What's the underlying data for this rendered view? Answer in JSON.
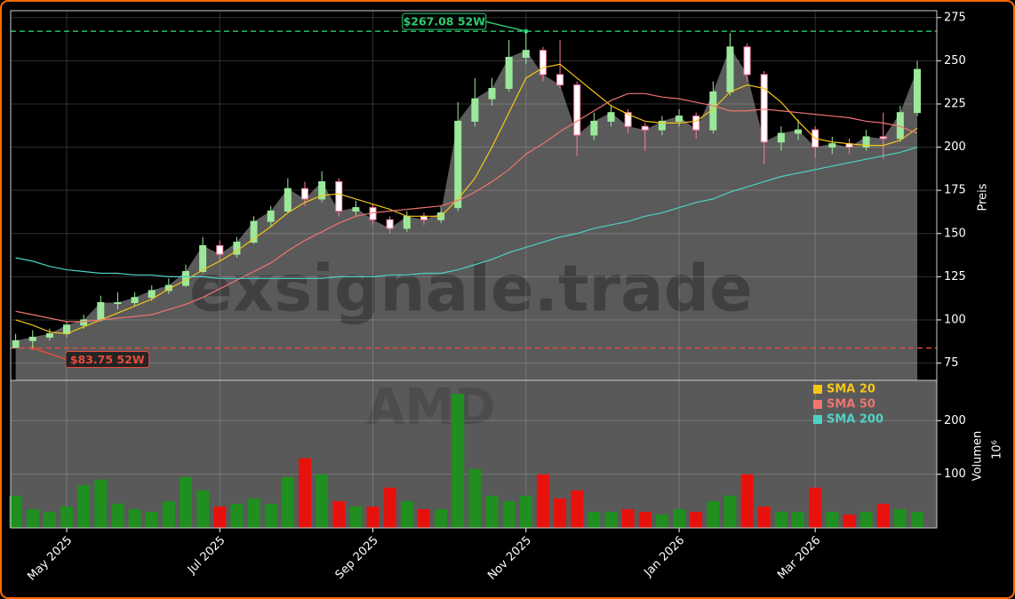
{
  "chart_data": {
    "type": "candlestick",
    "categories": [
      null,
      null,
      null,
      "May 2025",
      null,
      null,
      null,
      null,
      null,
      null,
      null,
      null,
      "Jul 2025",
      null,
      null,
      null,
      null,
      null,
      null,
      null,
      null,
      "Sep 2025",
      null,
      null,
      null,
      null,
      null,
      null,
      null,
      null,
      "Nov 2025",
      null,
      null,
      null,
      null,
      null,
      null,
      null,
      null,
      "Jan 2026",
      null,
      null,
      null,
      null,
      null,
      null,
      null,
      "Mar 2026",
      null,
      null,
      null,
      null,
      null,
      null
    ],
    "open": [
      84,
      88,
      90,
      92,
      97,
      100,
      110,
      110,
      113,
      117,
      120,
      128,
      143,
      138,
      145,
      157,
      163,
      176,
      170,
      180,
      163,
      165,
      158,
      153,
      160,
      158,
      165,
      215,
      228,
      234,
      252,
      256,
      242,
      236,
      207,
      215,
      220,
      212,
      210,
      215,
      218,
      210,
      232,
      258,
      242,
      203,
      208,
      210,
      200,
      202,
      200,
      206,
      205,
      220
    ],
    "high": [
      92,
      94,
      95,
      99,
      103,
      114,
      116,
      116,
      120,
      124,
      132,
      148,
      146,
      148,
      160,
      166,
      182,
      180,
      186,
      182,
      169,
      167,
      160,
      163,
      162,
      166,
      226,
      240,
      240,
      262,
      267.08,
      258,
      262,
      238,
      220,
      224,
      222,
      214,
      218,
      222,
      220,
      238,
      266,
      260,
      244,
      212,
      216,
      212,
      206,
      205,
      210,
      220,
      224,
      250
    ],
    "low": [
      85,
      83.75,
      88,
      90,
      95,
      99,
      106,
      108,
      111,
      115,
      119,
      127,
      134,
      136,
      144,
      154,
      162,
      166,
      168,
      160,
      160,
      155,
      150,
      151,
      155,
      156,
      163,
      212,
      224,
      232,
      248,
      238,
      234,
      195,
      204,
      212,
      208,
      198,
      207,
      212,
      205,
      208,
      230,
      238,
      190,
      198,
      204,
      194,
      196,
      196,
      198,
      193,
      203,
      218
    ],
    "close": [
      88,
      90,
      92,
      97,
      100,
      110,
      110,
      113,
      117,
      120,
      128,
      143,
      138,
      145,
      157,
      163,
      176,
      170,
      180,
      163,
      165,
      158,
      153,
      160,
      158,
      162,
      215,
      228,
      234,
      252,
      256,
      242,
      236,
      207,
      215,
      220,
      212,
      210,
      215,
      218,
      210,
      232,
      258,
      242,
      203,
      208,
      210,
      200,
      202,
      200,
      206,
      205,
      220,
      245
    ],
    "colors": {
      "up": "#9be89b",
      "down": "#ff7a9a",
      "area": "#5a5a5a"
    },
    "series": [
      {
        "name": "SMA 20",
        "color": "#f5c518",
        "values": [
          100,
          97,
          93,
          92,
          96,
          100,
          104,
          108,
          112,
          118,
          123,
          129,
          134,
          140,
          147,
          154,
          162,
          168,
          172,
          173,
          170,
          167,
          164,
          160,
          160,
          160,
          170,
          182,
          200,
          220,
          240,
          246,
          248,
          240,
          232,
          224,
          219,
          215,
          214,
          214,
          215,
          222,
          232,
          236,
          234,
          226,
          215,
          205,
          203,
          202,
          201,
          201,
          204,
          211
        ]
      },
      {
        "name": "SMA 50",
        "color": "#f07470",
        "values": [
          105,
          103,
          101,
          99,
          99,
          100,
          101,
          102,
          103,
          106,
          109,
          113,
          118,
          123,
          128,
          133,
          140,
          146,
          151,
          156,
          160,
          162,
          163,
          164,
          165,
          166,
          169,
          174,
          180,
          187,
          196,
          202,
          209,
          215,
          221,
          227,
          231,
          231,
          229,
          228,
          226,
          224,
          221,
          221,
          222,
          221,
          220,
          219,
          218,
          217,
          215,
          214,
          212,
          208
        ]
      },
      {
        "name": "SMA 200",
        "color": "#4fd1c5",
        "values": [
          136,
          134,
          131,
          129,
          128,
          127,
          127,
          126,
          126,
          125,
          125,
          125,
          124,
          124,
          124,
          124,
          124,
          124,
          124,
          125,
          125,
          125,
          126,
          126,
          127,
          127,
          129,
          132,
          135,
          139,
          142,
          145,
          148,
          150,
          153,
          155,
          157,
          160,
          162,
          165,
          168,
          170,
          174,
          177,
          180,
          183,
          185,
          187,
          189,
          191,
          193,
          195,
          197,
          200
        ]
      }
    ],
    "ylim": [
      65,
      279
    ],
    "yticks": [
      75,
      100,
      125,
      150,
      175,
      200,
      225,
      250,
      275
    ],
    "ylabel": "Preis",
    "grid": true,
    "legend": "upper right",
    "annotations": [
      {
        "text": "$267.08 52W",
        "value": 267.08,
        "color": "#2ecc71"
      },
      {
        "text": "$83.75 52W",
        "value": 83.75,
        "color": "#e74c3c"
      }
    ],
    "watermarks": [
      "exsignale.trade",
      "AMD"
    ],
    "volume": {
      "values": [
        60,
        35,
        30,
        40,
        80,
        90,
        45,
        35,
        30,
        50,
        95,
        70,
        40,
        45,
        55,
        45,
        95,
        130,
        100,
        50,
        40,
        40,
        75,
        50,
        35,
        35,
        250,
        110,
        60,
        50,
        60,
        100,
        55,
        70,
        30,
        30,
        35,
        30,
        25,
        35,
        30,
        50,
        60,
        100,
        40,
        30,
        30,
        75,
        30,
        25,
        30,
        45,
        35,
        30
      ],
      "ylim": [
        0,
        275
      ],
      "yticks": [
        100,
        200
      ],
      "ylabel": "Volumen",
      "offset_label": "10⁶",
      "up_color": "#1f8f1f",
      "down_color": "#e8120c"
    }
  }
}
